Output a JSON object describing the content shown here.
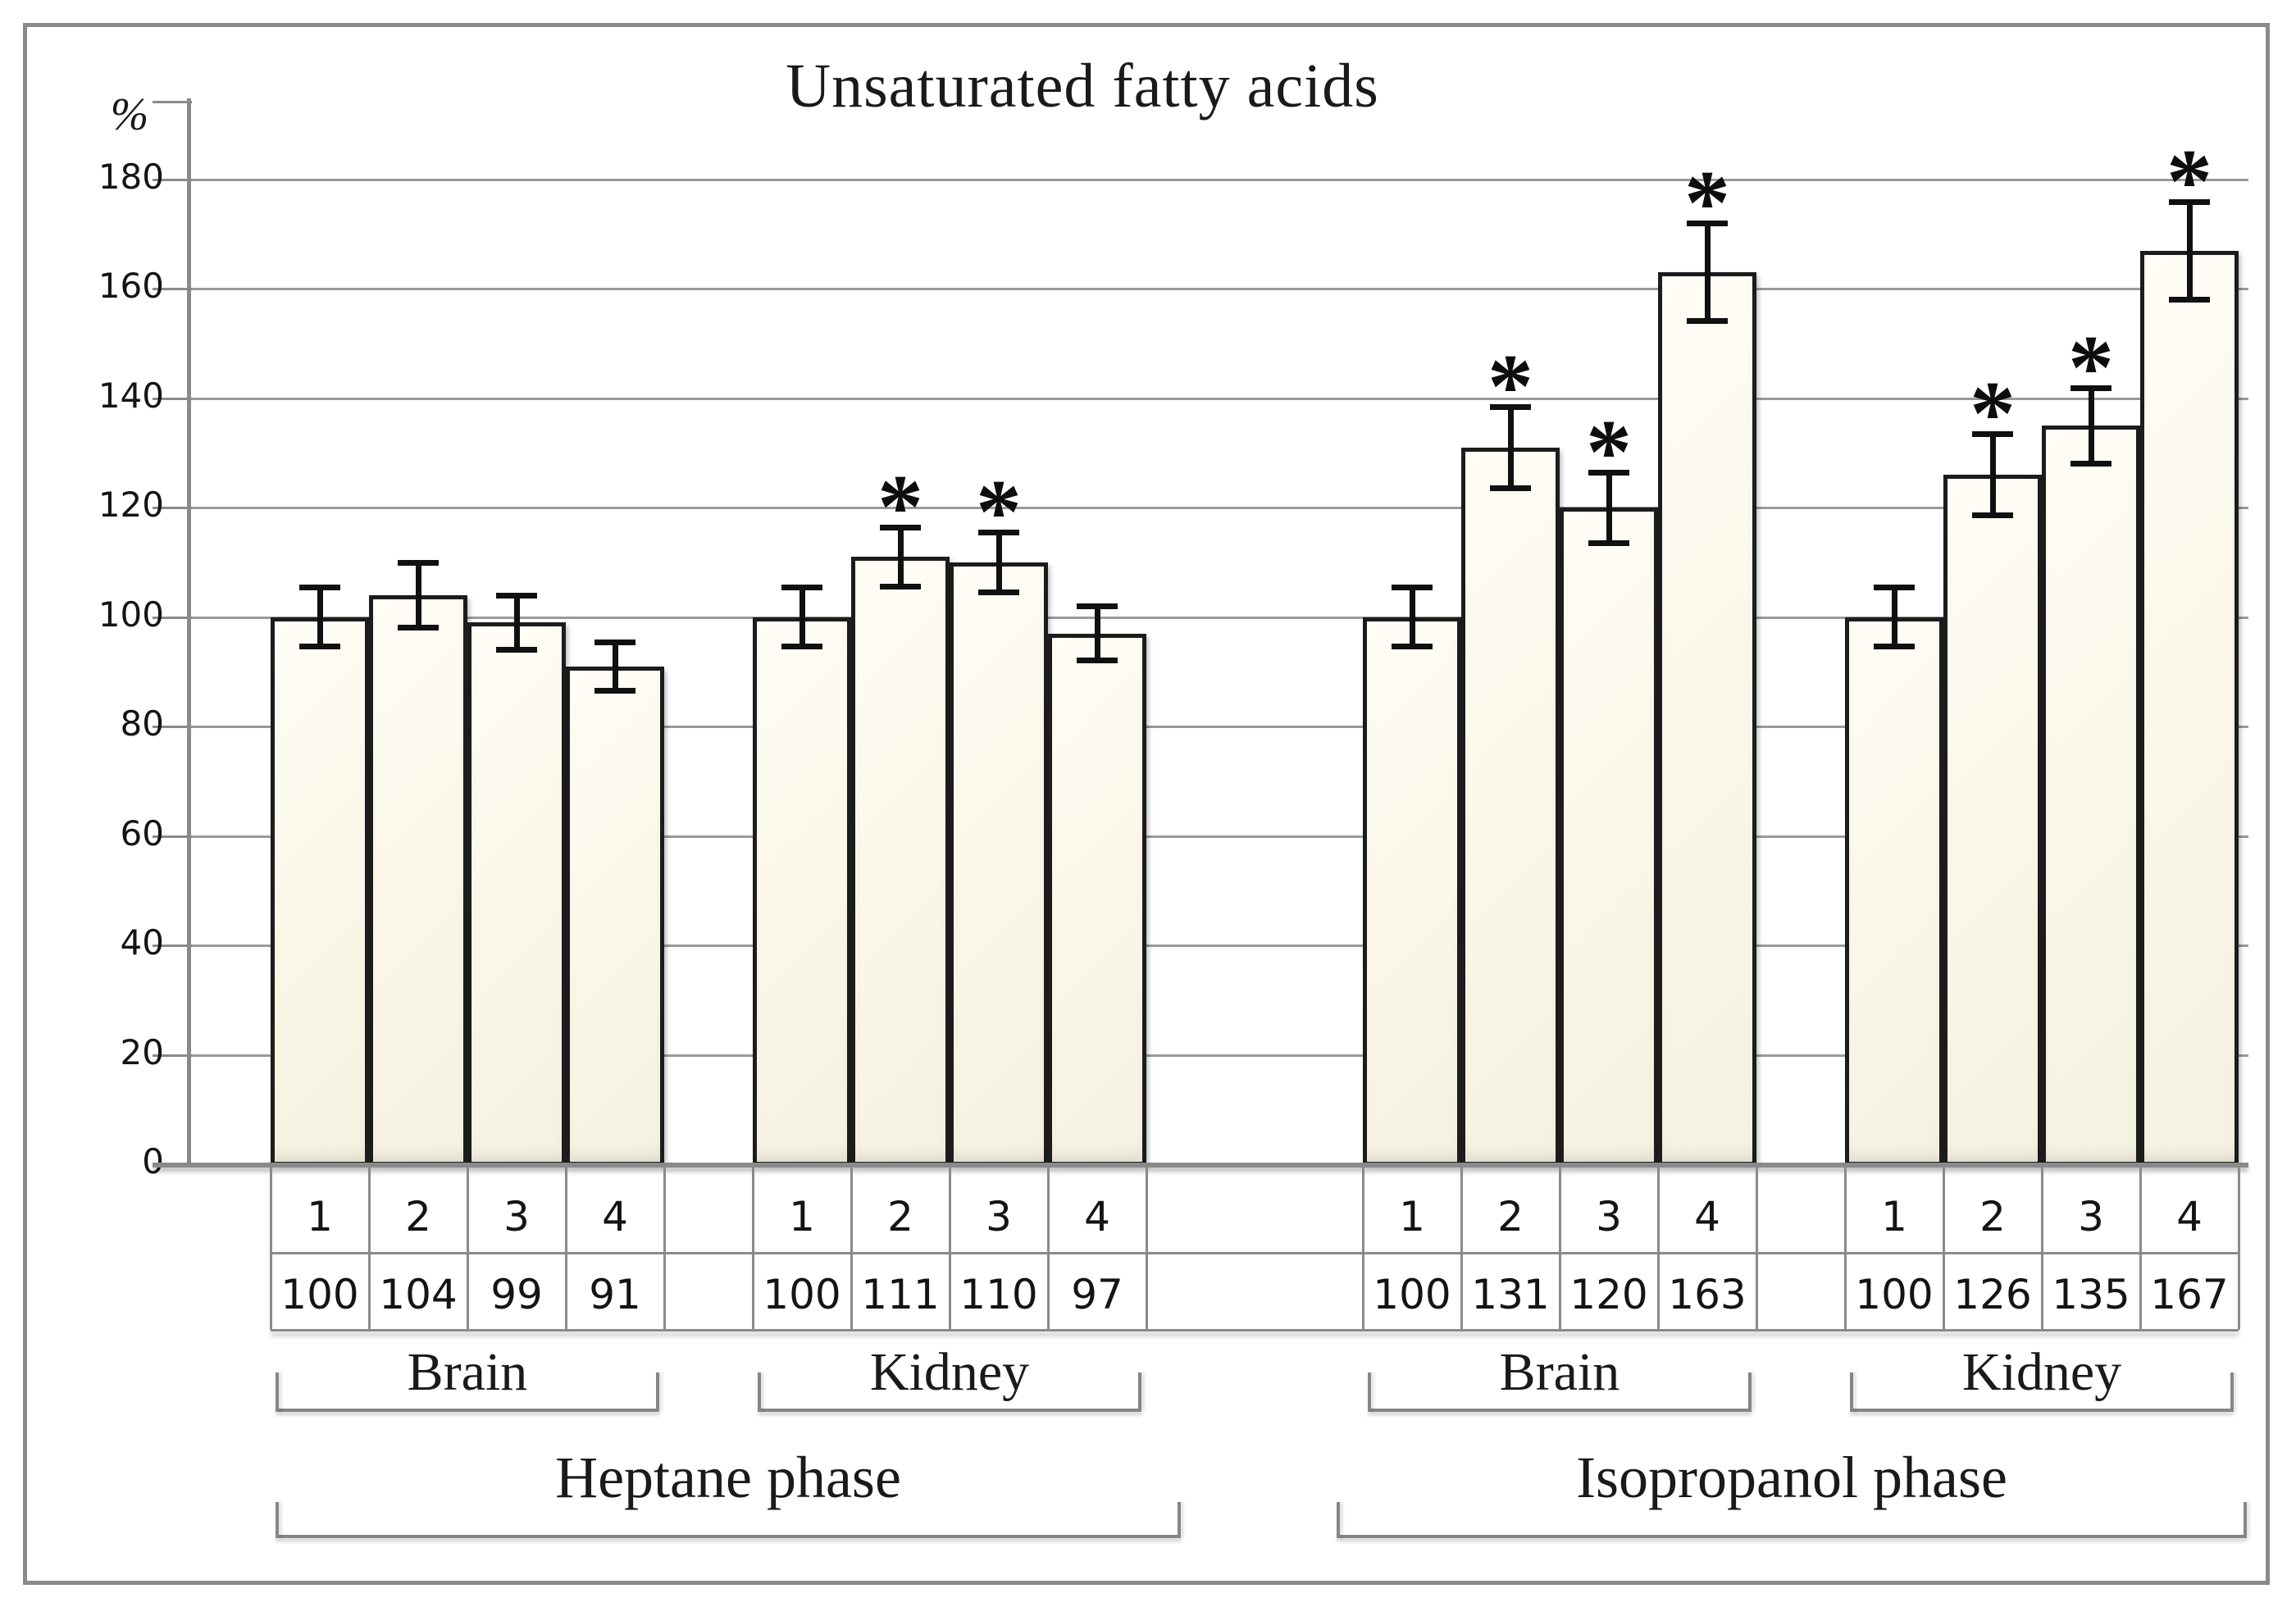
{
  "title": "Unsaturated fatty acids",
  "y_axis_unit": "%",
  "chart_data": {
    "type": "bar",
    "title": "Unsaturated fatty acids",
    "ylabel": "%",
    "ylim": [
      0,
      190
    ],
    "y_ticks": [
      0,
      20,
      40,
      60,
      80,
      100,
      120,
      140,
      160,
      180
    ],
    "grid": true,
    "legend": "none",
    "bar_fill": "#fbf8ea",
    "bar_border": "#1c1c1c",
    "grid_color": "#9a9a9a",
    "sig_marker": "*",
    "phases": [
      {
        "label": "Heptane phase",
        "tissues": [
          {
            "label": "Brain",
            "bars": [
              {
                "n": "1",
                "value": 100,
                "error": 5.5,
                "sig": false
              },
              {
                "n": "2",
                "value": 104,
                "error": 6,
                "sig": false
              },
              {
                "n": "3",
                "value": 99,
                "error": 5,
                "sig": false
              },
              {
                "n": "4",
                "value": 91,
                "error": 4.5,
                "sig": false
              }
            ]
          },
          {
            "label": "Kidney",
            "bars": [
              {
                "n": "1",
                "value": 100,
                "error": 5.5,
                "sig": false
              },
              {
                "n": "2",
                "value": 111,
                "error": 5.5,
                "sig": true
              },
              {
                "n": "3",
                "value": 110,
                "error": 5.5,
                "sig": true
              },
              {
                "n": "4",
                "value": 97,
                "error": 5,
                "sig": false
              }
            ]
          }
        ]
      },
      {
        "label": "Isopropanol phase",
        "tissues": [
          {
            "label": "Brain",
            "bars": [
              {
                "n": "1",
                "value": 100,
                "error": 5.5,
                "sig": false
              },
              {
                "n": "2",
                "value": 131,
                "error": 7.5,
                "sig": true
              },
              {
                "n": "3",
                "value": 120,
                "error": 6.5,
                "sig": true
              },
              {
                "n": "4",
                "value": 163,
                "error": 9,
                "sig": true
              }
            ]
          },
          {
            "label": "Kidney",
            "bars": [
              {
                "n": "1",
                "value": 100,
                "error": 5.5,
                "sig": false
              },
              {
                "n": "2",
                "value": 126,
                "error": 7.5,
                "sig": true
              },
              {
                "n": "3",
                "value": 135,
                "error": 7,
                "sig": true
              },
              {
                "n": "4",
                "value": 167,
                "error": 9,
                "sig": true
              }
            ]
          }
        ]
      }
    ]
  }
}
